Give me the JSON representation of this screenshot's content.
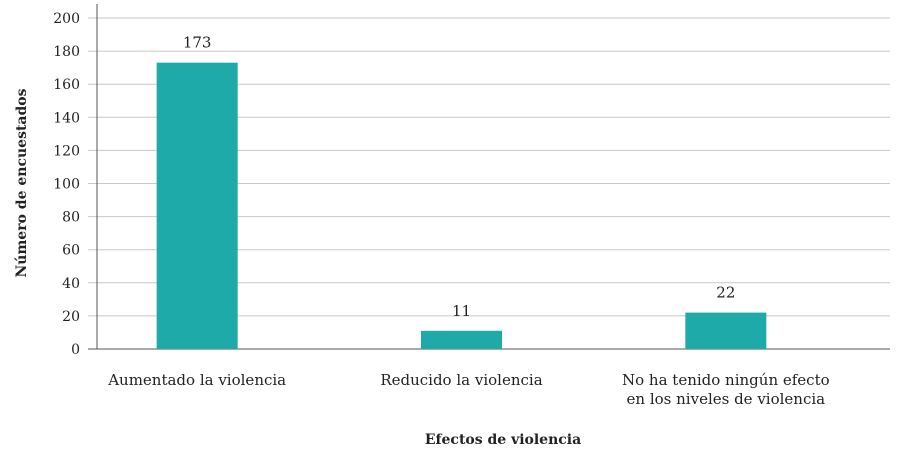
{
  "chart_data": {
    "type": "bar",
    "title": "",
    "xlabel": "Efectos de violencia",
    "ylabel": "Número de encuestados",
    "categories": [
      [
        "Aumentado la violencia"
      ],
      [
        "Reducido la violencia"
      ],
      [
        "No ha tenido ningún efecto",
        "en los niveles de violencia"
      ]
    ],
    "values": [
      173,
      11,
      22
    ],
    "data_labels": [
      "173",
      "11",
      "22"
    ],
    "ylim": [
      0,
      200
    ],
    "yticks": [
      0,
      20,
      40,
      60,
      80,
      100,
      120,
      140,
      160,
      180,
      200
    ],
    "grid": true,
    "legend": "none",
    "colors": {
      "bar": "#1faaaa",
      "grid": "#c8c8c8",
      "axis": "#555555"
    }
  }
}
